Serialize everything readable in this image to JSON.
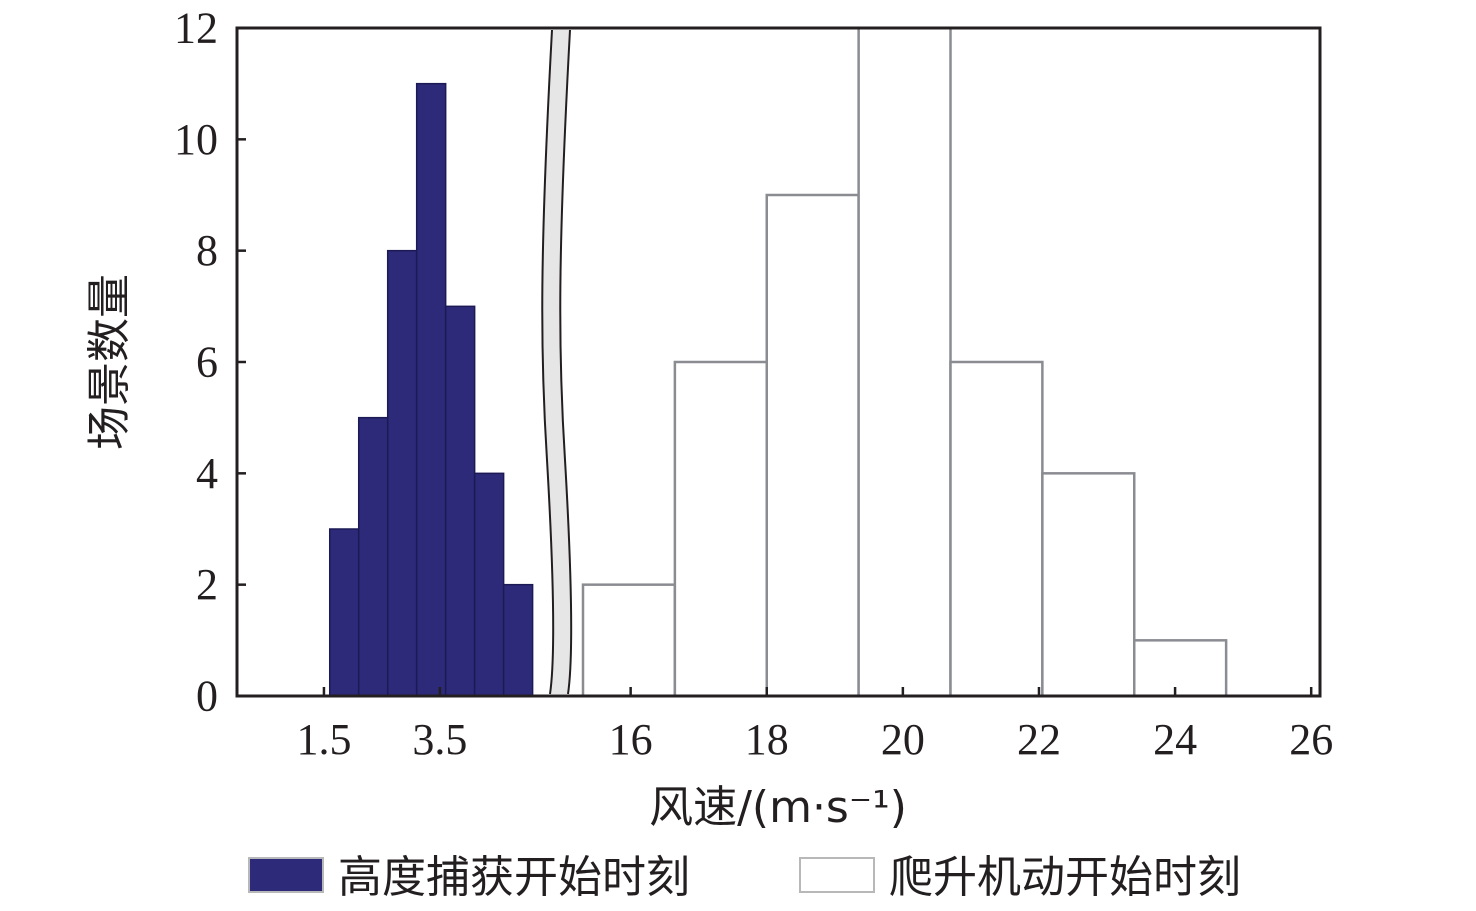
{
  "chart_data": {
    "type": "bar",
    "xlabel": "风速/(m·s⁻¹)",
    "ylabel": "场景数量",
    "ylim": [
      0,
      12
    ],
    "yticks": [
      "0",
      "2",
      "4",
      "6",
      "8",
      "10",
      "12"
    ],
    "x_axis_break": true,
    "legend_placement": "bottom",
    "panels": [
      {
        "name": "low-wind",
        "xlim": [
          0,
          5.4
        ],
        "xticks": [
          1.5,
          3.5
        ],
        "tick_labels": [
          "1.5",
          "3.5"
        ]
      },
      {
        "name": "high-wind",
        "xlim": [
          15.3,
          26.1
        ],
        "xticks": [
          16,
          18,
          20,
          22,
          24,
          26
        ],
        "tick_labels": [
          "16",
          "18",
          "20",
          "22",
          "24",
          "26"
        ]
      }
    ],
    "series": [
      {
        "name": "高度捕获开始时刻",
        "color": "#2e2a7a",
        "panel": 0,
        "bins": [
          {
            "x0": 1.6,
            "x1": 2.1,
            "value": 3
          },
          {
            "x0": 2.1,
            "x1": 2.6,
            "value": 5
          },
          {
            "x0": 2.6,
            "x1": 3.1,
            "value": 8
          },
          {
            "x0": 3.1,
            "x1": 3.6,
            "value": 11
          },
          {
            "x0": 3.6,
            "x1": 4.1,
            "value": 7
          },
          {
            "x0": 4.1,
            "x1": 4.6,
            "value": 4
          },
          {
            "x0": 4.6,
            "x1": 5.1,
            "value": 2
          }
        ]
      },
      {
        "name": "爬升机动开始时刻",
        "color": "#ffffff",
        "panel": 1,
        "bins": [
          {
            "x0": 15.3,
            "x1": 16.65,
            "value": 2
          },
          {
            "x0": 16.65,
            "x1": 18.0,
            "value": 6
          },
          {
            "x0": 18.0,
            "x1": 19.35,
            "value": 9
          },
          {
            "x0": 19.35,
            "x1": 20.7,
            "value": 12
          },
          {
            "x0": 20.7,
            "x1": 22.05,
            "value": 6
          },
          {
            "x0": 22.05,
            "x1": 23.4,
            "value": 4
          },
          {
            "x0": 23.4,
            "x1": 24.75,
            "value": 1
          }
        ]
      }
    ]
  }
}
